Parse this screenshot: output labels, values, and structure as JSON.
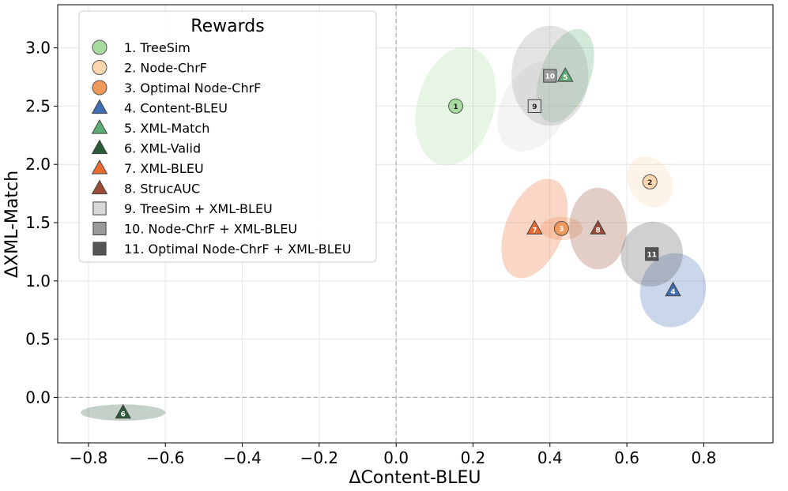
{
  "chart_data": {
    "type": "scatter",
    "title": "",
    "xlabel": "ΔContent-BLEU",
    "ylabel": "ΔXML-Match",
    "xlim": [
      -0.88,
      0.98
    ],
    "ylim": [
      -0.39,
      3.37
    ],
    "xticks": [
      -0.8,
      -0.6,
      -0.4,
      -0.2,
      0.0,
      0.2,
      0.4,
      0.6,
      0.8
    ],
    "xtick_labels": [
      "−0.8",
      "−0.6",
      "−0.4",
      "−0.2",
      "0.0",
      "0.2",
      "0.4",
      "0.6",
      "0.8"
    ],
    "yticks": [
      0.0,
      0.5,
      1.0,
      1.5,
      2.0,
      2.5,
      3.0
    ],
    "ytick_labels": [
      "0.0",
      "0.5",
      "1.0",
      "1.5",
      "2.0",
      "2.5",
      "3.0"
    ],
    "grid": true,
    "reference_lines": {
      "x": 0.0,
      "y": 0.0
    },
    "legend": {
      "title": "Rewards",
      "location": "top-left"
    },
    "series": [
      {
        "id": "1",
        "name": "1. TreeSim",
        "marker": "circle",
        "color": "#a8dba0",
        "x": 0.155,
        "y": 2.5,
        "ellipse": {
          "rx": 0.1,
          "ry": 0.52,
          "angle_deg": 15
        }
      },
      {
        "id": "2",
        "name": "2. Node-ChrF",
        "marker": "circle",
        "color": "#fdd5ae",
        "x": 0.66,
        "y": 1.85,
        "ellipse": {
          "rx": 0.055,
          "ry": 0.23,
          "angle_deg": -30
        }
      },
      {
        "id": "3",
        "name": "3. Optimal Node-ChrF",
        "marker": "circle",
        "color": "#f0985a",
        "x": 0.43,
        "y": 1.45,
        "ellipse": {
          "rx": 0.055,
          "ry": 0.1,
          "angle_deg": 0
        }
      },
      {
        "id": "4",
        "name": "4. Content-BLEU",
        "marker": "triangle",
        "color": "#3f6fb2",
        "x": 0.72,
        "y": 0.92,
        "ellipse": {
          "rx": 0.085,
          "ry": 0.32,
          "angle_deg": 15
        }
      },
      {
        "id": "5",
        "name": "5. XML-Match",
        "marker": "triangle",
        "color": "#5dab72",
        "x": 0.44,
        "y": 2.76,
        "ellipse": {
          "rx": 0.065,
          "ry": 0.42,
          "angle_deg": 20
        }
      },
      {
        "id": "6",
        "name": "6. XML-Valid",
        "marker": "triangle",
        "color": "#2b5a3a",
        "x": -0.71,
        "y": -0.13,
        "ellipse": {
          "rx": 0.11,
          "ry": 0.07,
          "angle_deg": 0
        }
      },
      {
        "id": "7",
        "name": "7. XML-BLEU",
        "marker": "triangle",
        "color": "#e86a2e",
        "x": 0.36,
        "y": 1.45,
        "ellipse": {
          "rx": 0.075,
          "ry": 0.45,
          "angle_deg": 22
        }
      },
      {
        "id": "8",
        "name": "8. StrucAUC",
        "marker": "triangle",
        "color": "#9a4b35",
        "x": 0.525,
        "y": 1.45,
        "ellipse": {
          "rx": 0.075,
          "ry": 0.35,
          "angle_deg": 0
        }
      },
      {
        "id": "9",
        "name": "9. TreeSim + XML-BLEU",
        "marker": "square",
        "color": "#d9d9d9",
        "x": 0.36,
        "y": 2.5,
        "ellipse": {
          "rx": 0.085,
          "ry": 0.42,
          "angle_deg": 30
        }
      },
      {
        "id": "10",
        "name": "10. Node-ChrF + XML-BLEU",
        "marker": "square",
        "color": "#9a9a9a",
        "x": 0.4,
        "y": 2.76,
        "ellipse": {
          "rx": 0.1,
          "ry": 0.43,
          "angle_deg": 0
        }
      },
      {
        "id": "11",
        "name": "11. Optimal Node-ChrF + XML-BLEU",
        "marker": "square",
        "color": "#555555",
        "x": 0.665,
        "y": 1.23,
        "ellipse": {
          "rx": 0.08,
          "ry": 0.28,
          "angle_deg": 20
        }
      }
    ]
  }
}
